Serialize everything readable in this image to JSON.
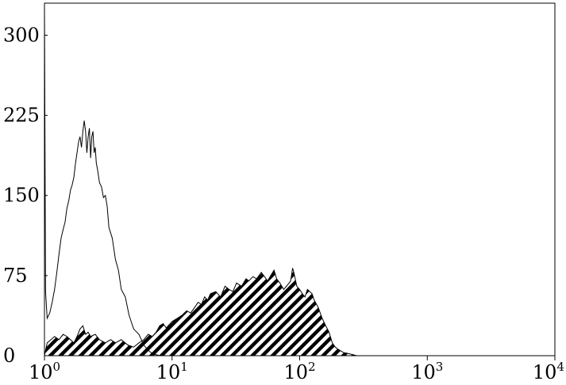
{
  "chart_data": {
    "type": "area",
    "title": "",
    "xlabel": "",
    "ylabel": "",
    "x_scale": "log",
    "xlim": [
      1,
      10000
    ],
    "ylim": [
      0,
      330
    ],
    "grid": false,
    "legend": "none",
    "x_ticks": [
      {
        "value": 1,
        "base": "10",
        "exp": "0"
      },
      {
        "value": 10,
        "base": "10",
        "exp": "1"
      },
      {
        "value": 100,
        "base": "10",
        "exp": "2"
      },
      {
        "value": 1000,
        "base": "10",
        "exp": "3"
      },
      {
        "value": 10000,
        "base": "10",
        "exp": "4"
      }
    ],
    "y_ticks": [
      {
        "value": 0,
        "label": "0"
      },
      {
        "value": 75,
        "label": "75"
      },
      {
        "value": 150,
        "label": "150"
      },
      {
        "value": 225,
        "label": "225"
      },
      {
        "value": 300,
        "label": "300"
      }
    ],
    "series": [
      {
        "style": "outline",
        "color": "#000000",
        "points": [
          [
            1.0,
            330
          ],
          [
            1.02,
            60
          ],
          [
            1.05,
            35
          ],
          [
            1.1,
            40
          ],
          [
            1.15,
            50
          ],
          [
            1.2,
            62
          ],
          [
            1.25,
            78
          ],
          [
            1.3,
            95
          ],
          [
            1.35,
            110
          ],
          [
            1.4,
            118
          ],
          [
            1.45,
            125
          ],
          [
            1.5,
            138
          ],
          [
            1.55,
            145
          ],
          [
            1.6,
            155
          ],
          [
            1.65,
            160
          ],
          [
            1.7,
            167
          ],
          [
            1.75,
            180
          ],
          [
            1.8,
            190
          ],
          [
            1.85,
            200
          ],
          [
            1.9,
            205
          ],
          [
            1.95,
            195
          ],
          [
            2.0,
            210
          ],
          [
            2.05,
            220
          ],
          [
            2.1,
            210
          ],
          [
            2.15,
            190
          ],
          [
            2.2,
            205
          ],
          [
            2.25,
            213
          ],
          [
            2.3,
            185
          ],
          [
            2.35,
            205
          ],
          [
            2.4,
            210
          ],
          [
            2.45,
            190
          ],
          [
            2.5,
            195
          ],
          [
            2.55,
            180
          ],
          [
            2.6,
            175
          ],
          [
            2.7,
            162
          ],
          [
            2.8,
            158
          ],
          [
            2.9,
            148
          ],
          [
            3.0,
            150
          ],
          [
            3.1,
            140
          ],
          [
            3.2,
            120
          ],
          [
            3.4,
            110
          ],
          [
            3.6,
            90
          ],
          [
            3.8,
            80
          ],
          [
            4.0,
            62
          ],
          [
            4.3,
            55
          ],
          [
            4.6,
            38
          ],
          [
            5.0,
            25
          ],
          [
            5.5,
            20
          ],
          [
            6.0,
            10
          ],
          [
            6.5,
            5
          ],
          [
            7.0,
            2
          ],
          [
            8.0,
            0
          ],
          [
            10.0,
            0
          ]
        ]
      },
      {
        "style": "hatched",
        "color": "#000000",
        "points": [
          [
            1.0,
            0
          ],
          [
            1.05,
            12
          ],
          [
            1.1,
            14
          ],
          [
            1.2,
            18
          ],
          [
            1.3,
            15
          ],
          [
            1.4,
            20
          ],
          [
            1.5,
            18
          ],
          [
            1.6,
            15
          ],
          [
            1.7,
            12
          ],
          [
            1.8,
            18
          ],
          [
            1.9,
            25
          ],
          [
            2.0,
            28
          ],
          [
            2.1,
            20
          ],
          [
            2.2,
            22
          ],
          [
            2.3,
            18
          ],
          [
            2.5,
            20
          ],
          [
            2.7,
            15
          ],
          [
            3.0,
            12
          ],
          [
            3.3,
            15
          ],
          [
            3.6,
            12
          ],
          [
            4.0,
            15
          ],
          [
            4.5,
            10
          ],
          [
            5.0,
            8
          ],
          [
            5.5,
            12
          ],
          [
            6.0,
            15
          ],
          [
            6.5,
            20
          ],
          [
            7.0,
            18
          ],
          [
            7.5,
            22
          ],
          [
            8.0,
            28
          ],
          [
            8.5,
            30
          ],
          [
            9.0,
            26
          ],
          [
            10.0,
            32
          ],
          [
            11.0,
            35
          ],
          [
            12.0,
            38
          ],
          [
            13.0,
            42
          ],
          [
            14.0,
            40
          ],
          [
            15.0,
            45
          ],
          [
            16.0,
            50
          ],
          [
            17.0,
            48
          ],
          [
            18.0,
            55
          ],
          [
            19.0,
            52
          ],
          [
            20.0,
            58
          ],
          [
            22.0,
            60
          ],
          [
            24.0,
            55
          ],
          [
            26.0,
            65
          ],
          [
            28.0,
            62
          ],
          [
            30.0,
            60
          ],
          [
            32.0,
            68
          ],
          [
            35.0,
            65
          ],
          [
            38.0,
            72
          ],
          [
            40.0,
            70
          ],
          [
            43.0,
            74
          ],
          [
            46.0,
            72
          ],
          [
            50.0,
            78
          ],
          [
            53.0,
            74
          ],
          [
            56.0,
            70
          ],
          [
            60.0,
            76
          ],
          [
            63.0,
            80
          ],
          [
            66.0,
            72
          ],
          [
            70.0,
            68
          ],
          [
            75.0,
            62
          ],
          [
            80.0,
            66
          ],
          [
            85.0,
            70
          ],
          [
            88.0,
            82
          ],
          [
            90.0,
            78
          ],
          [
            95.0,
            65
          ],
          [
            100.0,
            62
          ],
          [
            105.0,
            58
          ],
          [
            110.0,
            55
          ],
          [
            115.0,
            62
          ],
          [
            120.0,
            60
          ],
          [
            125.0,
            58
          ],
          [
            130.0,
            52
          ],
          [
            140.0,
            45
          ],
          [
            150.0,
            35
          ],
          [
            160.0,
            28
          ],
          [
            170.0,
            22
          ],
          [
            180.0,
            12
          ],
          [
            190.0,
            8
          ],
          [
            200.0,
            6
          ],
          [
            220.0,
            3
          ],
          [
            240.0,
            2
          ],
          [
            260.0,
            1
          ],
          [
            280.0,
            0
          ]
        ]
      }
    ]
  }
}
